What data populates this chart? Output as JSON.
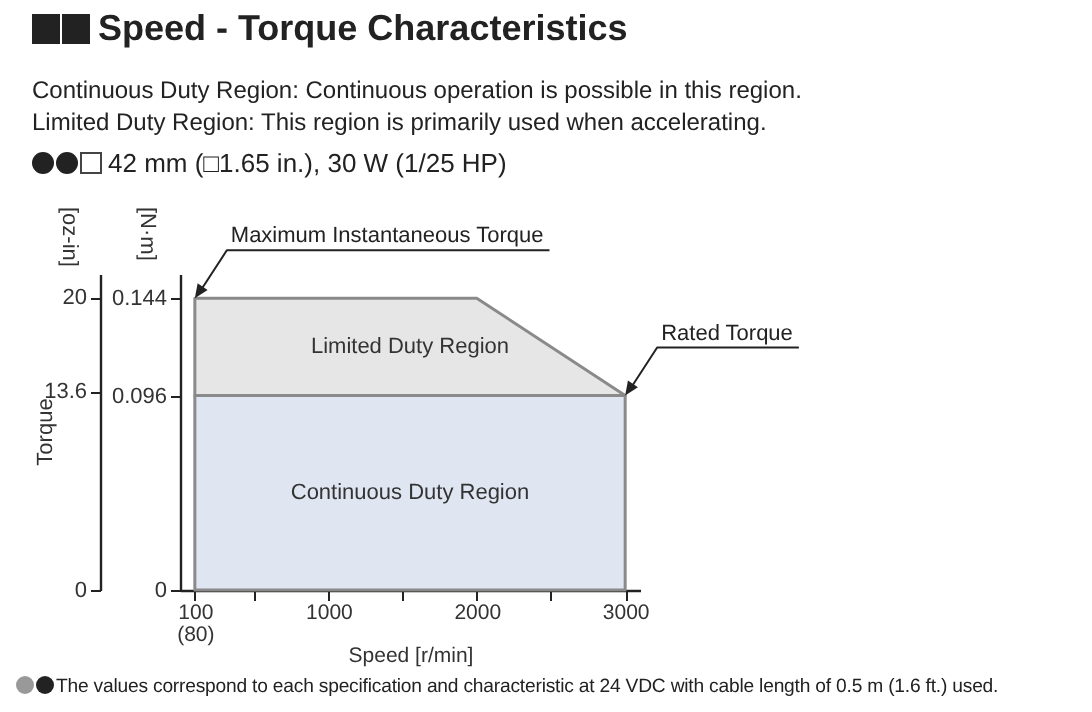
{
  "chart_data": {
    "type": "area",
    "title": "Speed - Torque Characteristics",
    "subtitle": "Continuous Duty Region: Continuous operation is possible in this region.\nLimited Duty Region: This region is primarily used when accelerating.",
    "xlabel": "Speed [r/min]",
    "ylabel": "[N·m]",
    "y2label": "[oz-in]",
    "x": [
      100,
      2000,
      3000
    ],
    "stacked": true,
    "series": [
      {
        "name": "Continuous Duty Region",
        "color": "#dfe6f2",
        "values": [
          0.096,
          0.096,
          0.096
        ]
      },
      {
        "name": "Limited Duty Region",
        "color": "#e6e6e6",
        "values": [
          0.048,
          0.048,
          0
        ]
      }
    ],
    "xlim": [
      0,
      3100
    ],
    "xticks": [
      {
        "value": 100,
        "label": "100\n(80)"
      },
      {
        "value": 500,
        "label": null
      },
      1000,
      {
        "value": 1500,
        "label": null
      },
      2000,
      {
        "value": 2500,
        "label": null
      },
      3000
    ],
    "ylim": [
      0,
      0.156
    ],
    "yticks": [
      0,
      0.096,
      0.144
    ],
    "y2lim": [
      0,
      21.6
    ],
    "y2ticks": [
      0,
      13.6,
      20
    ],
    "annotations": [
      "42 mm (□1.65 in.), 30 W (1/25 HP)",
      "Torque",
      {
        "text": "Maximum Instantaneous Torque",
        "x": 100,
        "y": 0.144
      },
      {
        "text": "Rated Torque",
        "x": 3000,
        "y": 0.096
      },
      "The values correspond to each specification and characteristic at 24 VDC with cable length of 0.5 m (1.6 ft.) used."
    ]
  }
}
